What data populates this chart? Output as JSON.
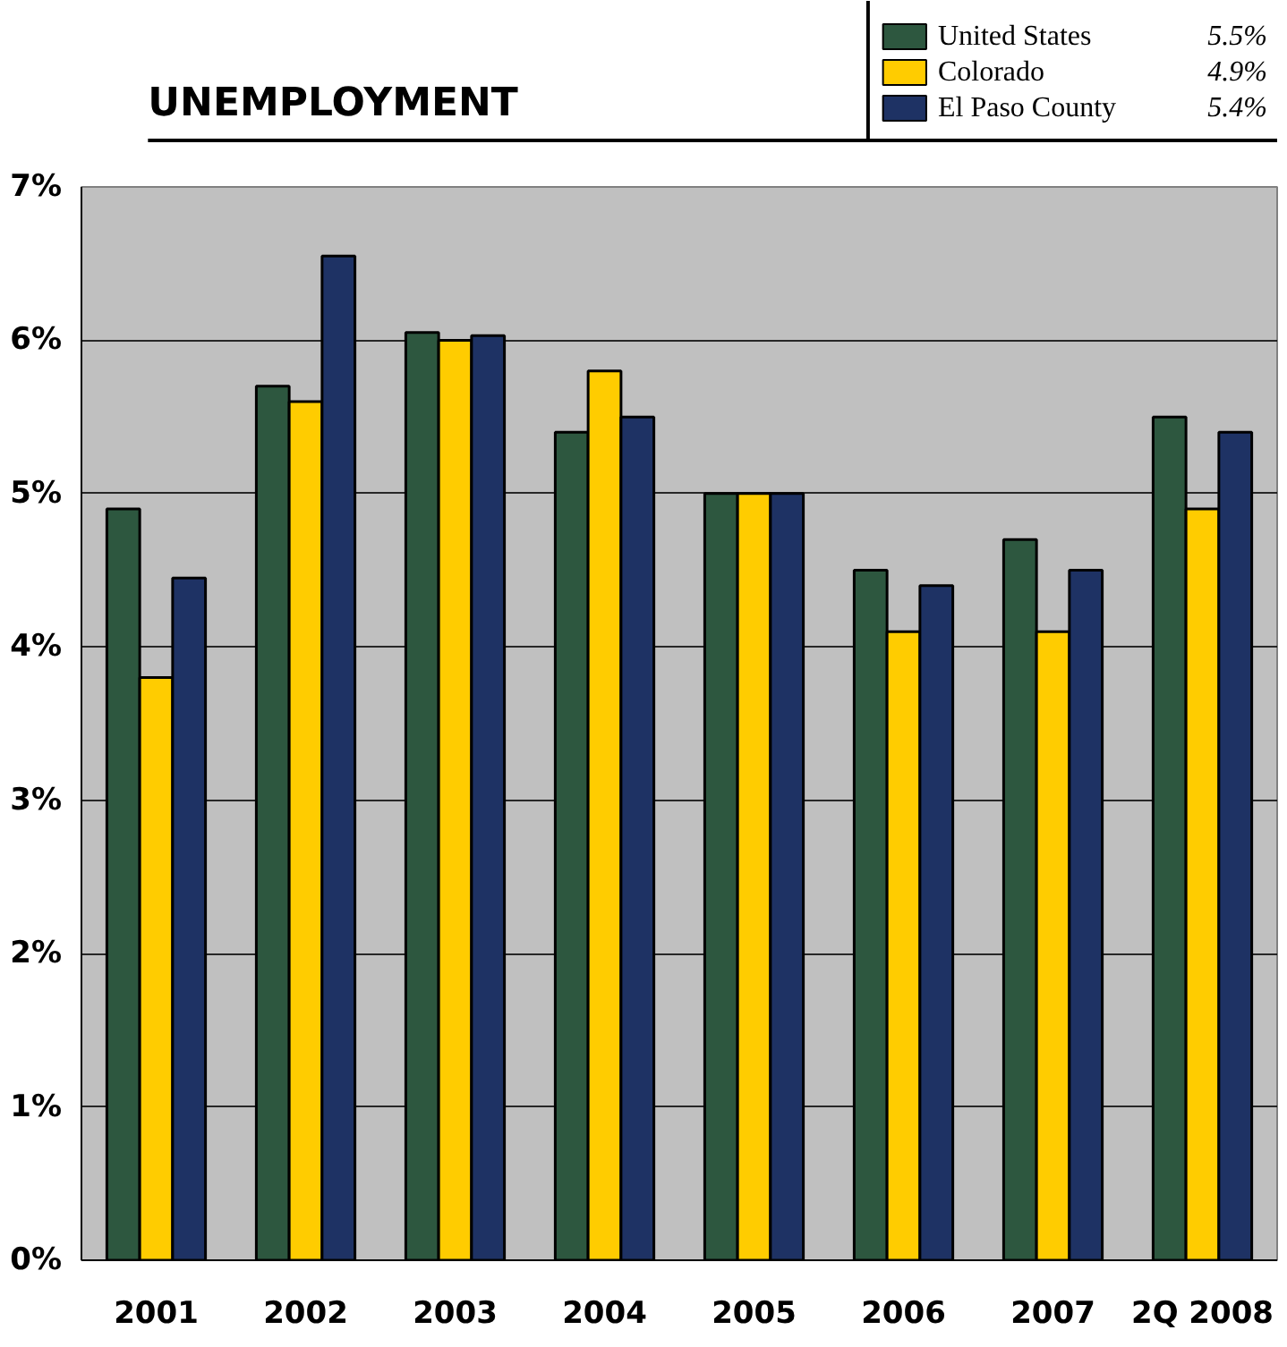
{
  "chart_data": {
    "type": "bar",
    "title": "UNEMPLOYMENT",
    "categories": [
      "2001",
      "2002",
      "2003",
      "2004",
      "2005",
      "2006",
      "2007",
      "2Q 2008"
    ],
    "series": [
      {
        "name": "United States",
        "color": "#2d573f",
        "values": [
          4.9,
          5.7,
          6.05,
          5.4,
          5.0,
          4.5,
          4.7,
          5.5
        ]
      },
      {
        "name": "Colorado",
        "color": "#ffcc00",
        "values": [
          3.8,
          5.6,
          6.0,
          5.8,
          5.0,
          4.1,
          4.1,
          4.9
        ]
      },
      {
        "name": "El Paso County",
        "color": "#1e3264",
        "values": [
          4.45,
          6.55,
          6.03,
          5.5,
          5.0,
          4.4,
          4.5,
          5.4
        ]
      }
    ],
    "annotations": [
      "5.5%",
      "4.9%",
      "5.4%"
    ],
    "ylim": [
      0,
      7
    ],
    "yticks": [
      {
        "value": 0,
        "label": "0%"
      },
      {
        "value": 1,
        "label": "1%"
      },
      {
        "value": 2,
        "label": "2%"
      },
      {
        "value": 3,
        "label": "3%"
      },
      {
        "value": 4,
        "label": "4%"
      },
      {
        "value": 5,
        "label": "5%"
      },
      {
        "value": 6,
        "label": "6%"
      },
      {
        "value": 7,
        "label": "7%"
      }
    ],
    "grid": "y",
    "legend": "top right"
  }
}
